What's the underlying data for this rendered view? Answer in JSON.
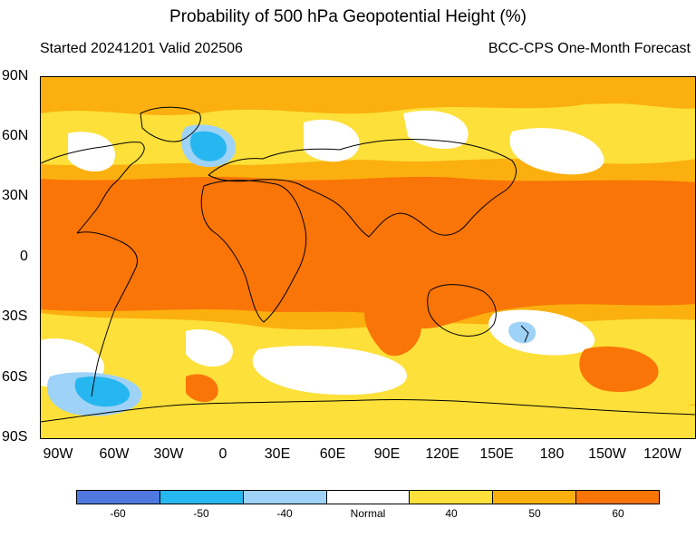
{
  "title": "Probability of 500 hPa Geopotential Height (%)",
  "subtitle_left": "Started 20241201  Valid 202506",
  "subtitle_right": "BCC-CPS One-Month Forecast",
  "lat_labels": [
    "90N",
    "60N",
    "30N",
    "0",
    "30S",
    "60S",
    "90S"
  ],
  "lon_labels": [
    "90W",
    "60W",
    "30W",
    "0",
    "30E",
    "60E",
    "90E",
    "120E",
    "150E",
    "180",
    "150W",
    "120W"
  ],
  "legend": {
    "labels": [
      "-60",
      "-50",
      "-40",
      "Normal",
      "40",
      "50",
      "60"
    ],
    "colors": [
      "#4f79e0",
      "#27b7f0",
      "#9fd2f7",
      "#ffffff",
      "#fde03a",
      "#fbb00f",
      "#f97508"
    ]
  },
  "colors": {
    "tropics_60": "#f97508",
    "prob_50": "#fbb00f",
    "prob_40": "#fde03a",
    "normal": "#ffffff",
    "below_40": "#9fd2f7",
    "below_50": "#27b7f0",
    "coastline": "#000000"
  }
}
